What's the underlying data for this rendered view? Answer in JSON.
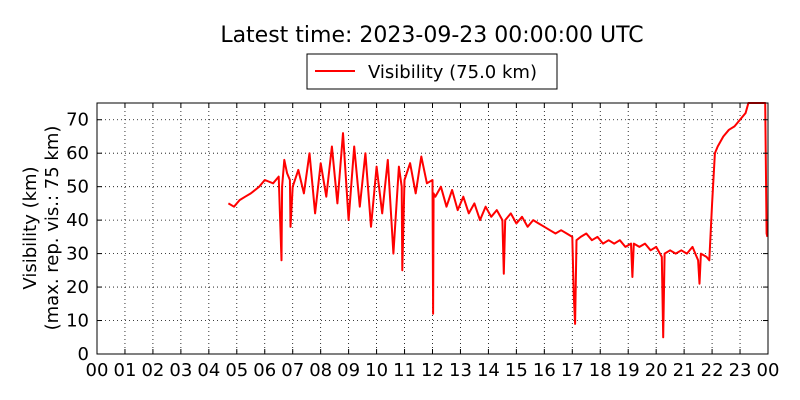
{
  "chart_data": {
    "type": "line",
    "title": "Latest time: 2023-09-23 00:00:00 UTC",
    "xlabel": "",
    "ylabel": "Visibility (km)",
    "ylabel2": "(max. rep. vis.: 75 km)",
    "xlim": [
      0,
      24
    ],
    "ylim": [
      0,
      75
    ],
    "grid": true,
    "legend_position": "top-center",
    "x_ticks": [
      "00",
      "01",
      "02",
      "03",
      "04",
      "05",
      "06",
      "07",
      "08",
      "09",
      "10",
      "11",
      "12",
      "13",
      "14",
      "15",
      "16",
      "17",
      "18",
      "19",
      "20",
      "21",
      "22",
      "23",
      "00"
    ],
    "y_ticks": [
      0,
      10,
      20,
      30,
      40,
      50,
      60,
      70
    ],
    "series": [
      {
        "name": "Visibility (75.0 km)",
        "color": "#ff0000",
        "x": [
          4.7,
          4.9,
          5.1,
          5.3,
          5.5,
          5.8,
          6.0,
          6.3,
          6.5,
          6.6,
          6.62,
          6.7,
          6.8,
          6.9,
          6.92,
          7.0,
          7.2,
          7.4,
          7.6,
          7.8,
          8.0,
          8.2,
          8.4,
          8.6,
          8.8,
          9.0,
          9.2,
          9.4,
          9.6,
          9.8,
          10.0,
          10.2,
          10.4,
          10.6,
          10.8,
          10.9,
          10.92,
          11.0,
          11.2,
          11.4,
          11.6,
          11.8,
          12.0,
          12.02,
          12.04,
          12.1,
          12.3,
          12.5,
          12.7,
          12.9,
          13.1,
          13.3,
          13.5,
          13.7,
          13.9,
          14.1,
          14.3,
          14.5,
          14.55,
          14.6,
          14.8,
          15.0,
          15.2,
          15.4,
          15.6,
          15.8,
          16.0,
          16.2,
          16.4,
          16.6,
          16.8,
          17.0,
          17.05,
          17.1,
          17.15,
          17.3,
          17.5,
          17.7,
          17.9,
          18.1,
          18.3,
          18.5,
          18.7,
          18.9,
          19.1,
          19.15,
          19.2,
          19.4,
          19.6,
          19.8,
          20.0,
          20.2,
          20.25,
          20.3,
          20.5,
          20.7,
          20.9,
          21.1,
          21.3,
          21.5,
          21.55,
          21.6,
          21.8,
          21.9,
          22.0,
          22.1,
          22.2,
          22.4,
          22.6,
          22.8,
          23.0,
          23.2,
          23.3,
          23.5,
          23.7,
          23.9,
          23.95,
          23.98
        ],
        "y": [
          45,
          44,
          46,
          47,
          48,
          50,
          52,
          51,
          53,
          28,
          50,
          58,
          54,
          52,
          38,
          50,
          55,
          48,
          60,
          42,
          57,
          47,
          62,
          45,
          66,
          40,
          62,
          44,
          60,
          38,
          56,
          42,
          58,
          30,
          56,
          50,
          25,
          52,
          57,
          48,
          59,
          51,
          52,
          12,
          48,
          47,
          50,
          44,
          49,
          43,
          47,
          42,
          45,
          40,
          44,
          41,
          43,
          40,
          24,
          40,
          42,
          39,
          41,
          38,
          40,
          39,
          38,
          37,
          36,
          37,
          36,
          35,
          18,
          9,
          34,
          35,
          36,
          34,
          35,
          33,
          34,
          33,
          34,
          32,
          33,
          23,
          33,
          32,
          33,
          31,
          32,
          29,
          5,
          30,
          31,
          30,
          31,
          30,
          32,
          28,
          21,
          30,
          29,
          28,
          45,
          60,
          62,
          65,
          67,
          68,
          70,
          72,
          75,
          75,
          75,
          75,
          36,
          35
        ]
      }
    ]
  }
}
